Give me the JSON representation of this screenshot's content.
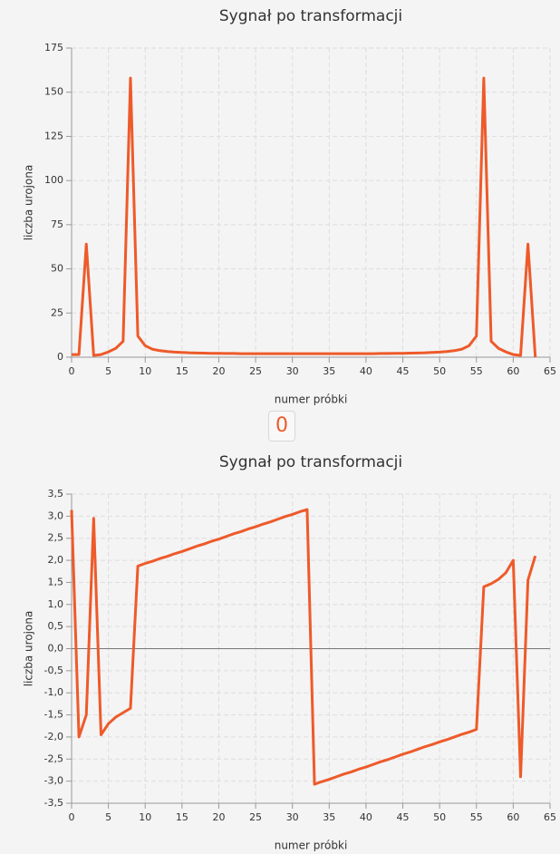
{
  "chart_data": [
    {
      "type": "line",
      "title": "Sygnał po transformacji",
      "x_label": "numer próbki",
      "y_label": "liczba urojona",
      "x": [
        0,
        1,
        2,
        3,
        4,
        5,
        6,
        7,
        8,
        9,
        10,
        11,
        12,
        13,
        14,
        15,
        16,
        17,
        18,
        19,
        20,
        21,
        22,
        23,
        24,
        25,
        26,
        27,
        28,
        29,
        30,
        31,
        32,
        33,
        34,
        35,
        36,
        37,
        38,
        39,
        40,
        41,
        42,
        43,
        44,
        45,
        46,
        47,
        48,
        49,
        50,
        51,
        52,
        53,
        54,
        55,
        56,
        57,
        58,
        59,
        60,
        61,
        62,
        63
      ],
      "series": [
        {
          "color": "#ee5a2a",
          "values": [
            1.5,
            1.5,
            64,
            1,
            1.5,
            3,
            5,
            9,
            158,
            12,
            6.5,
            4.5,
            3.7,
            3.2,
            2.9,
            2.7,
            2.5,
            2.4,
            2.3,
            2.2,
            2.2,
            2.1,
            2.1,
            2,
            2,
            2,
            2,
            2,
            2,
            2,
            2,
            2,
            2,
            2,
            2,
            2,
            2,
            2,
            2,
            2,
            2,
            2,
            2.1,
            2.1,
            2.2,
            2.2,
            2.3,
            2.4,
            2.5,
            2.7,
            2.9,
            3.2,
            3.7,
            4.5,
            6.5,
            12,
            158,
            9,
            5,
            3,
            1.5,
            1,
            64,
            0
          ]
        }
      ],
      "xlim": [
        0,
        65
      ],
      "xticks": [
        0,
        5,
        10,
        15,
        20,
        25,
        30,
        35,
        40,
        45,
        50,
        55,
        60,
        65
      ],
      "ylim": [
        0,
        175
      ],
      "yticks": [
        0,
        25,
        50,
        75,
        100,
        125,
        150,
        175
      ],
      "grid": true,
      "zero_line": false
    },
    {
      "type": "line",
      "title": "Sygnał po transformacji",
      "x_label": "numer próbki",
      "y_label": "liczba urojona",
      "x": [
        0,
        1,
        2,
        3,
        4,
        5,
        6,
        7,
        8,
        9,
        10,
        11,
        12,
        13,
        14,
        15,
        16,
        17,
        18,
        19,
        20,
        21,
        22,
        23,
        24,
        25,
        26,
        27,
        28,
        29,
        30,
        31,
        32,
        33,
        34,
        35,
        36,
        37,
        38,
        39,
        40,
        41,
        42,
        43,
        44,
        45,
        46,
        47,
        48,
        49,
        50,
        51,
        52,
        53,
        54,
        55,
        56,
        57,
        58,
        59,
        60,
        61,
        62,
        63
      ],
      "series": [
        {
          "color": "#ee5a2a",
          "values": [
            3.14,
            -2.0,
            -1.5,
            2.95,
            -1.95,
            -1.7,
            -1.55,
            -1.45,
            -1.35,
            1.87,
            1.93,
            1.98,
            2.04,
            2.09,
            2.15,
            2.2,
            2.26,
            2.32,
            2.37,
            2.43,
            2.48,
            2.54,
            2.6,
            2.65,
            2.71,
            2.76,
            2.82,
            2.87,
            2.93,
            2.99,
            3.04,
            3.1,
            3.15,
            -3.07,
            -3.01,
            -2.96,
            -2.9,
            -2.84,
            -2.79,
            -2.73,
            -2.68,
            -2.62,
            -2.56,
            -2.51,
            -2.45,
            -2.39,
            -2.34,
            -2.28,
            -2.22,
            -2.17,
            -2.11,
            -2.06,
            -2.0,
            -1.94,
            -1.89,
            -1.83,
            1.4,
            1.47,
            1.57,
            1.72,
            2.0,
            -2.9,
            1.55,
            2.1
          ]
        }
      ],
      "xlim": [
        0,
        65
      ],
      "xticks": [
        0,
        5,
        10,
        15,
        20,
        25,
        30,
        35,
        40,
        45,
        50,
        55,
        60,
        65
      ],
      "ylim": [
        -3.5,
        3.5
      ],
      "yticks": [
        {
          "value": -3.5,
          "label": "-3,5"
        },
        {
          "value": -3,
          "label": "-3,0"
        },
        {
          "value": -2.5,
          "label": "-2,5"
        },
        {
          "value": -2,
          "label": "-2,0"
        },
        {
          "value": -1.5,
          "label": "-1,5"
        },
        {
          "value": -1,
          "label": "-1,0"
        },
        {
          "value": -0.5,
          "label": "-0,5"
        },
        {
          "value": 0,
          "label": "0,0"
        },
        {
          "value": 0.5,
          "label": "0,5"
        },
        {
          "value": 1,
          "label": "1,0"
        },
        {
          "value": 1.5,
          "label": "1,5"
        },
        {
          "value": 2,
          "label": "2,0"
        },
        {
          "value": 2.5,
          "label": "2,5"
        },
        {
          "value": 3,
          "label": "3,0"
        },
        {
          "value": 3.5,
          "label": "3,5"
        }
      ],
      "grid": true,
      "zero_line": true
    }
  ],
  "button": {
    "label": "0"
  }
}
